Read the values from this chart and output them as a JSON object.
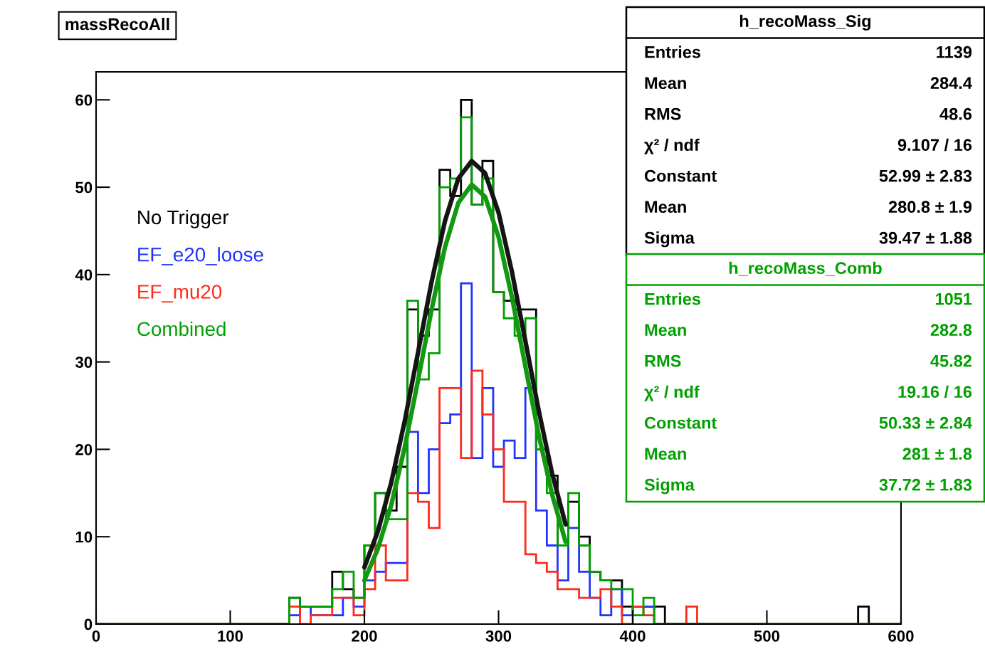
{
  "chart_data": {
    "type": "histogram",
    "title": "massRecoAll",
    "bins": [
      0,
      8,
      16,
      24,
      32,
      40,
      48,
      56,
      64,
      72,
      80,
      88,
      96,
      104,
      112,
      120,
      128,
      136,
      144,
      152,
      160,
      168,
      176,
      184,
      192,
      200,
      208,
      216,
      224,
      232,
      240,
      248,
      256,
      264,
      272,
      280,
      288,
      296,
      304,
      312,
      320,
      328,
      336,
      344,
      352,
      360,
      368,
      376,
      384,
      392,
      400,
      408,
      416,
      424,
      432,
      440,
      448,
      456,
      464,
      472,
      480,
      488,
      496,
      504,
      512,
      520,
      528,
      536,
      544,
      552,
      560,
      568,
      576,
      584,
      592,
      600
    ],
    "series": [
      {
        "name": "No Trigger",
        "color": "#000000",
        "values": [
          0,
          0,
          0,
          0,
          0,
          0,
          0,
          0,
          0,
          0,
          0,
          0,
          0,
          0,
          0,
          0,
          0,
          0,
          3,
          2,
          2,
          2,
          6,
          4,
          3,
          9,
          15,
          13,
          18,
          36,
          33,
          36,
          52,
          49,
          60,
          48,
          53,
          38,
          37,
          36,
          36,
          20,
          17,
          9,
          14,
          10,
          6,
          5,
          5,
          2,
          2,
          2,
          2,
          0,
          0,
          0,
          0,
          0,
          0,
          0,
          0,
          0,
          0,
          0,
          0,
          0,
          0,
          0,
          0,
          0,
          0,
          2,
          0,
          0,
          0
        ]
      },
      {
        "name": "EF_e20_loose",
        "color": "#2233ff",
        "values": [
          0,
          0,
          0,
          0,
          0,
          0,
          0,
          0,
          0,
          0,
          0,
          0,
          0,
          0,
          0,
          0,
          0,
          0,
          1,
          2,
          1,
          1,
          1,
          3,
          2,
          5,
          6,
          7,
          7,
          22,
          15,
          20,
          23,
          24,
          39,
          19,
          27,
          18,
          21,
          19,
          27,
          13,
          9,
          5,
          11,
          6,
          3,
          1,
          4,
          1,
          2,
          2,
          0,
          0,
          0,
          0,
          0,
          0,
          0,
          0,
          0,
          0,
          0,
          0,
          0,
          0,
          0,
          0,
          0,
          0,
          0,
          0,
          0,
          0,
          0
        ]
      },
      {
        "name": "EF_mu20",
        "color": "#ff2a1a",
        "values": [
          0,
          0,
          0,
          0,
          0,
          0,
          0,
          0,
          0,
          0,
          0,
          0,
          0,
          0,
          0,
          0,
          0,
          0,
          2,
          0,
          1,
          1,
          3,
          3,
          1,
          4,
          9,
          5,
          5,
          15,
          14,
          11,
          27,
          27,
          19,
          29,
          24,
          20,
          14,
          14,
          8,
          7,
          6,
          4,
          4,
          3,
          3,
          4,
          2,
          0,
          2,
          1,
          0,
          0,
          0,
          2,
          0,
          0,
          0,
          0,
          0,
          0,
          0,
          0,
          0,
          0,
          0,
          0,
          0,
          0,
          0,
          0,
          0,
          0,
          0
        ]
      },
      {
        "name": "Combined",
        "color": "#00a000",
        "values": [
          0,
          0,
          0,
          0,
          0,
          0,
          0,
          0,
          0,
          0,
          0,
          0,
          0,
          0,
          0,
          0,
          0,
          0,
          3,
          2,
          2,
          2,
          4,
          6,
          3,
          9,
          15,
          12,
          12,
          37,
          28,
          31,
          50,
          51,
          58,
          48,
          51,
          38,
          35,
          33,
          35,
          20,
          15,
          9,
          15,
          9,
          6,
          5,
          4,
          4,
          1,
          3,
          0,
          0,
          0,
          0,
          0,
          0,
          0,
          0,
          0,
          0,
          0,
          0,
          0,
          0,
          0,
          0,
          0,
          0,
          0,
          0,
          0,
          0,
          0
        ]
      },
      {
        "type": "line",
        "color": "#141414",
        "x": [
          200,
          210,
          220,
          230,
          240,
          250,
          260,
          270,
          280,
          290,
          300,
          310,
          320,
          330,
          340,
          350
        ],
        "values": [
          6.5,
          10.6,
          16.2,
          23.2,
          31.1,
          39.1,
          46.1,
          51,
          53,
          51.6,
          47.1,
          40.3,
          32.4,
          24.4,
          17.2,
          11.4
        ]
      },
      {
        "type": "line",
        "color": "#119911",
        "x": [
          200,
          210,
          220,
          230,
          240,
          250,
          260,
          270,
          280,
          290,
          300,
          310,
          320,
          330,
          340,
          350
        ],
        "values": [
          5,
          8.6,
          13.6,
          20.2,
          27.9,
          35.9,
          43.1,
          48.2,
          50.3,
          48.9,
          44.3,
          37.4,
          29.5,
          21.6,
          14.8,
          9.4
        ]
      }
    ],
    "xlim": [
      0,
      600
    ],
    "xticks": [
      0,
      100,
      200,
      300,
      400,
      500,
      600
    ],
    "ylim": [
      0,
      63.2
    ],
    "yticks": [
      0,
      10,
      20,
      30,
      40,
      50,
      60
    ],
    "legend": "top left",
    "annotations": [
      "h_recoMass_Sig",
      "Entries",
      "1139",
      "Mean",
      "284.4",
      "RMS",
      "48.6",
      "χ² / ndf",
      "9.107 / 16",
      "Constant",
      "52.99 ± 2.83",
      "Mean",
      "280.8 ± 1.9",
      "Sigma",
      "39.47 ± 1.88",
      "h_recoMass_Comb",
      "Entries",
      "1051",
      "Mean",
      "282.8",
      "RMS",
      "45.82",
      "χ² / ndf",
      "19.16 / 16",
      "Constant",
      "50.33 ± 2.84",
      "Mean",
      "281 ± 1.8",
      "Sigma",
      "37.72 ± 1.83"
    ]
  }
}
